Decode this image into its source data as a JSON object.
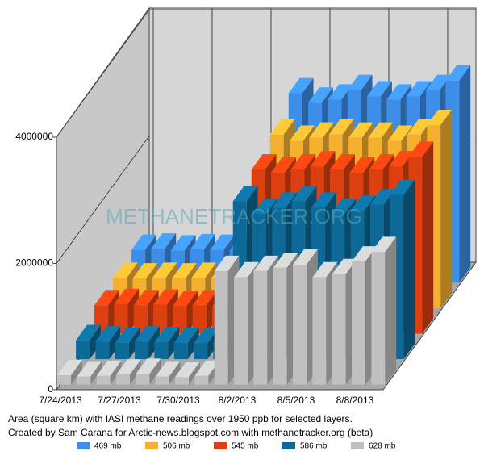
{
  "chart_data": {
    "type": "bar3d",
    "categories": [
      "7/24/2013",
      null,
      null,
      "7/27/2013",
      null,
      null,
      "7/30/2013",
      null,
      null,
      "8/2/2013",
      null,
      null,
      "8/5/2013",
      null,
      null,
      "8/8/2013",
      null
    ],
    "series": [
      {
        "name": "469 mb",
        "color": "#3d8ee8",
        "values": [
          520000,
          540000,
          510000,
          530000,
          520000,
          510000,
          520000,
          520000,
          3000000,
          2850000,
          2900000,
          3050000,
          2950000,
          2900000,
          2950000,
          3050000,
          3200000
        ]
      },
      {
        "name": "506 mb",
        "color": "#f5b030",
        "values": [
          480000,
          470000,
          480000,
          470000,
          480000,
          470000,
          460000,
          470000,
          2750000,
          2650000,
          2700000,
          2750000,
          2700000,
          2700000,
          2650000,
          2750000,
          2900000
        ]
      },
      {
        "name": "545 mb",
        "color": "#dd4010",
        "values": [
          450000,
          470000,
          450000,
          460000,
          440000,
          450000,
          430000,
          440000,
          2600000,
          2550000,
          2600000,
          2650000,
          2600000,
          2550000,
          2600000,
          2650000,
          2800000
        ]
      },
      {
        "name": "586 mb",
        "color": "#0d6a98",
        "values": [
          300000,
          280000,
          260000,
          280000,
          270000,
          260000,
          250000,
          260000,
          2500000,
          2300000,
          2400000,
          2500000,
          2400000,
          2300000,
          2350000,
          2450000,
          2600000
        ]
      },
      {
        "name": "628 mb",
        "color": "#c0c0c0",
        "values": [
          150000,
          130000,
          140000,
          160000,
          170000,
          130000,
          120000,
          140000,
          1800000,
          1700000,
          1800000,
          1850000,
          1900000,
          1700000,
          1750000,
          1950000,
          2100000
        ]
      }
    ],
    "ylim": [
      0,
      4000000
    ],
    "yticks": [
      0,
      2000000,
      4000000
    ],
    "grid": true,
    "caption": [
      "Area (square km) with IASI methane readings over 1950 ppb for selected layers.",
      "Created by Sam Carana for Arctic-news.blogspot.com with methanetracker.org (beta)"
    ],
    "watermark": "METHANETRACKER.ORG"
  }
}
